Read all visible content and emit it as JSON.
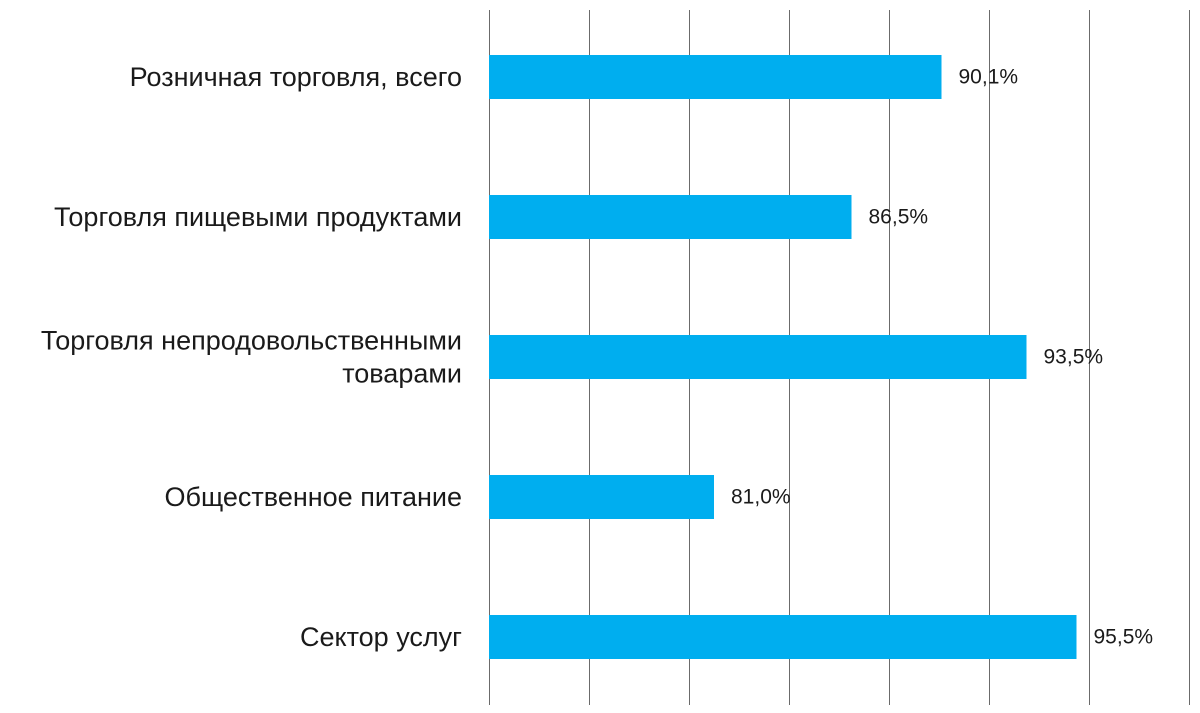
{
  "chart_data": {
    "type": "bar",
    "orientation": "horizontal",
    "title": "",
    "xlabel": "",
    "ylabel": "",
    "categories": [
      [
        "Розничная торговля, всего"
      ],
      [
        "Торговля пищевыми продуктами"
      ],
      [
        "Торговля непродовольственными",
        "товарами"
      ],
      [
        "Общественное питание"
      ],
      [
        "Сектор услуг"
      ]
    ],
    "values": [
      90.1,
      86.5,
      93.5,
      81.0,
      95.5
    ],
    "value_labels": [
      "90,1%",
      "86,5%",
      "93,5%",
      "81,0%",
      "95,5%"
    ],
    "xlim": [
      72,
      100
    ],
    "x_gridlines": [
      72,
      76,
      80,
      84,
      88,
      92,
      96,
      100
    ],
    "grid": true,
    "legend": "none",
    "colors": {
      "bar": "#00AEEF",
      "grid": "#6b6b6b",
      "text": "#1a1a1a"
    }
  }
}
